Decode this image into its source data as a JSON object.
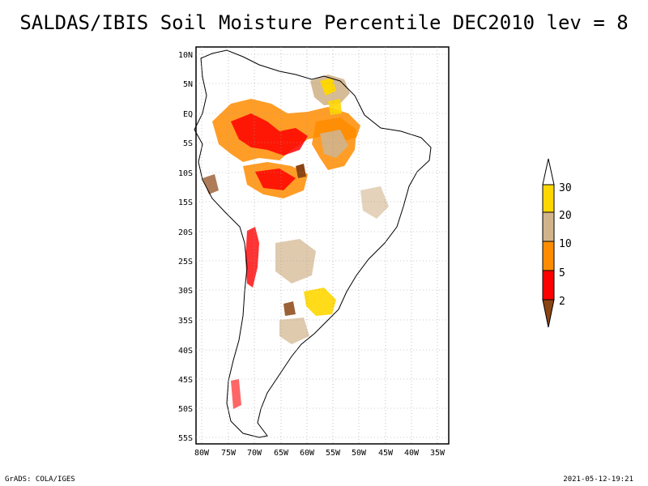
{
  "title": "SALDAS/IBIS Soil Moisture Percentile DEC2010 lev = 8",
  "footer": {
    "left": "GrADS: COLA/IGES",
    "right": "2021-05-12-19:21"
  },
  "axes": {
    "lat_ticks": [
      "10N",
      "5N",
      "EQ",
      "5S",
      "10S",
      "15S",
      "20S",
      "25S",
      "30S",
      "35S",
      "40S",
      "45S",
      "50S",
      "55S"
    ],
    "lon_ticks": [
      "80W",
      "75W",
      "70W",
      "65W",
      "60W",
      "55W",
      "50W",
      "45W",
      "40W",
      "35W"
    ],
    "lat_range": [
      -56,
      11
    ],
    "lon_range": [
      -81,
      -34
    ]
  },
  "colorbar": {
    "labels": [
      "2",
      "5",
      "10",
      "20",
      "30"
    ],
    "bins": [
      {
        "range": "<2",
        "color": "#8b4513"
      },
      {
        "range": "2-5",
        "color": "#ff0000"
      },
      {
        "range": "5-10",
        "color": "#ff8c00"
      },
      {
        "range": "10-20",
        "color": "#d2b48c"
      },
      {
        "range": "20-30",
        "color": "#ffd700"
      },
      {
        "range": ">30",
        "color": "#ffffff"
      }
    ]
  }
}
